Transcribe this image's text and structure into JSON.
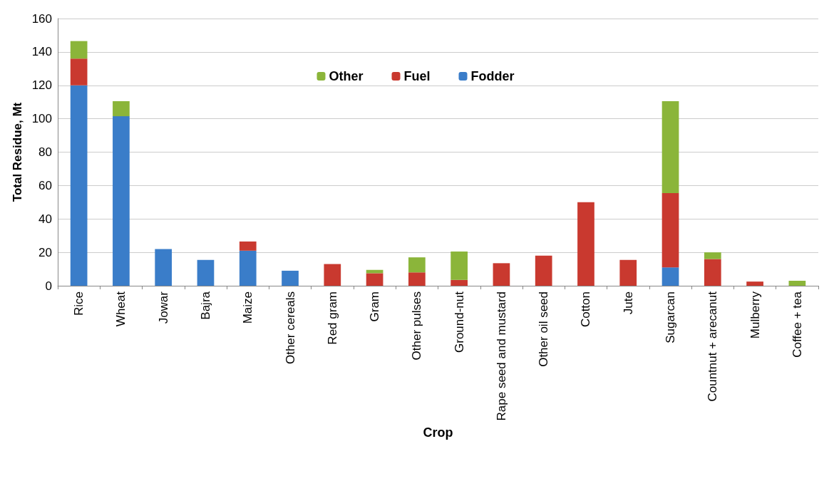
{
  "chart_data": {
    "type": "bar",
    "stacked": true,
    "xlabel": "Crop",
    "ylabel": "Total Residue, Mt",
    "categories": [
      "Rice",
      "Wheat",
      "Jowar",
      "Bajra",
      "Maize",
      "Other cereals",
      "Red gram",
      "Gram",
      "Other pulses",
      "Ground-nut",
      "Rape seed and mustard",
      "Other oil seed",
      "Cotton",
      "Jute",
      "Sugarcan",
      "Countnut + arecanut",
      "Mulberry",
      "Coffee + tea"
    ],
    "series": [
      {
        "name": "Fodder",
        "color": "#3a7dc9",
        "values": [
          120,
          101.5,
          22,
          15.5,
          21,
          9,
          null,
          null,
          null,
          null,
          null,
          null,
          null,
          null,
          11,
          null,
          null,
          null
        ]
      },
      {
        "name": "Fuel",
        "color": "#c9392f",
        "values": [
          16,
          null,
          null,
          null,
          5.5,
          null,
          13,
          7.5,
          8,
          3.5,
          13.5,
          18,
          50,
          15.5,
          44.5,
          16,
          2.5,
          null
        ]
      },
      {
        "name": "Other",
        "color": "#8bb53a",
        "values": [
          10.5,
          9,
          null,
          null,
          null,
          null,
          null,
          2,
          9,
          17,
          null,
          null,
          null,
          null,
          55,
          4,
          null,
          3
        ]
      }
    ],
    "ylim": [
      0,
      160
    ],
    "yticks": [
      0,
      20,
      40,
      60,
      80,
      100,
      120,
      140,
      160
    ],
    "grid": "y",
    "legend": "top"
  }
}
